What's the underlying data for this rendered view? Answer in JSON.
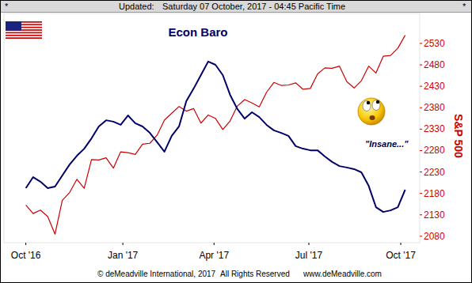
{
  "header": [
    "*",
    "Updated:",
    "Saturday 07 October, 2017 - 04:45 Pacific Time",
    "*"
  ],
  "footer": [
    "© deMeadville International, 2017",
    "All Rights Reserved",
    "www.deMeadville.com"
  ],
  "chart_data": {
    "type": "line",
    "annotations": [
      "\"Insane...\""
    ],
    "x": [
      0,
      1,
      2,
      3,
      4,
      5,
      6,
      7,
      8,
      9,
      10,
      11,
      12,
      13,
      14,
      15,
      16,
      17,
      18,
      19,
      20,
      21,
      22,
      23,
      24,
      25,
      26,
      27,
      28,
      29,
      30,
      31,
      32,
      33,
      34,
      35,
      36,
      37,
      38,
      39,
      40,
      41,
      42,
      43,
      44,
      45,
      46,
      47,
      48,
      49,
      50,
      51,
      52
    ],
    "xlim": [
      -3,
      54
    ],
    "xticks": [
      {
        "value": 0,
        "label": "Oct '16"
      },
      {
        "value": 13.3,
        "label": "Jan '17"
      },
      {
        "value": 25.8,
        "label": "Apr '17"
      },
      {
        "value": 38.8,
        "label": "Jul '17"
      },
      {
        "value": 51.4,
        "label": "Oct '17"
      }
    ],
    "ylim": [
      0,
      100
    ],
    "y2lim": [
      2065,
      2600
    ],
    "y2ticks": [
      2080,
      2130,
      2180,
      2230,
      2280,
      2330,
      2380,
      2430,
      2480,
      2530
    ],
    "grid": false,
    "series": [
      {
        "name": "Econ Baro",
        "color": "#000066",
        "values": [
          23.8,
          28.6,
          26.6,
          23.8,
          24.5,
          29.3,
          34.1,
          37.9,
          41.0,
          45.5,
          50.7,
          53.4,
          52.8,
          51.4,
          55.5,
          52.1,
          50.7,
          47.9,
          43.8,
          39.7,
          46.6,
          50.7,
          61.7,
          67.2,
          73.1,
          79.0,
          77.6,
          73.1,
          64.5,
          58.3,
          54.1,
          56.9,
          54.8,
          51.4,
          49.0,
          47.9,
          46.6,
          42.1,
          41.0,
          40.3,
          40.3,
          37.6,
          35.2,
          33.4,
          32.8,
          32.1,
          30.7,
          24.8,
          15.5,
          13.4,
          14.1,
          15.5,
          23.1
        ]
      },
      {
        "name": "S&P 500",
        "color": "#cc0000",
        "axis": "y2",
        "values": [
          2153,
          2133,
          2141,
          2126,
          2085,
          2164,
          2182,
          2213,
          2192,
          2259,
          2258,
          2263,
          2239,
          2277,
          2275,
          2271,
          2295,
          2297,
          2316,
          2351,
          2367,
          2383,
          2372,
          2378,
          2344,
          2363,
          2355,
          2329,
          2349,
          2384,
          2399,
          2391,
          2382,
          2416,
          2439,
          2432,
          2433,
          2438,
          2423,
          2425,
          2459,
          2473,
          2472,
          2477,
          2441,
          2426,
          2443,
          2477,
          2461,
          2500,
          2502,
          2519,
          2549
        ]
      }
    ]
  }
}
